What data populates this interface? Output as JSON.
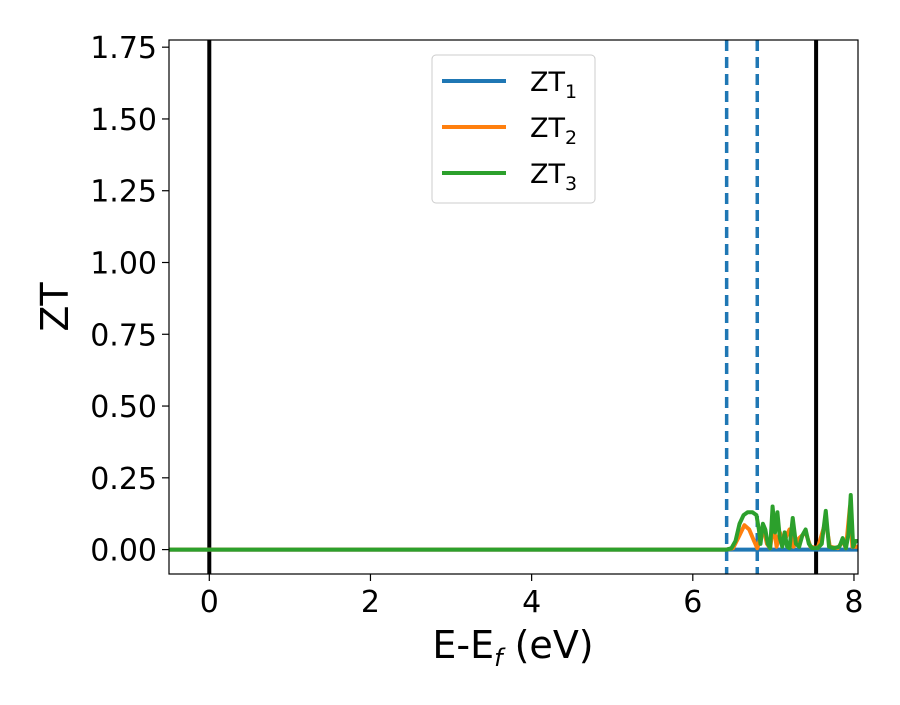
{
  "chart_data": {
    "type": "line",
    "title": "",
    "xlabel": "E-E",
    "xlabel_sub": "f",
    "xlabel_unit": " (eV)",
    "ylabel": "ZT",
    "xlim": [
      -0.5,
      8.05
    ],
    "ylim": [
      -0.085,
      1.775
    ],
    "xticks": [
      0,
      2,
      4,
      6,
      8
    ],
    "yticks": [
      0.0,
      0.25,
      0.5,
      0.75,
      1.0,
      1.25,
      1.5,
      1.75
    ],
    "ytick_labels": [
      "0.00",
      "0.25",
      "0.50",
      "0.75",
      "1.00",
      "1.25",
      "1.50",
      "1.75"
    ],
    "legend_position": "upper-center",
    "vlines": [
      {
        "x": 0.0,
        "style": "solid",
        "color": "#000000"
      },
      {
        "x": 7.53,
        "style": "solid",
        "color": "#000000"
      },
      {
        "x": 6.42,
        "style": "dashed",
        "color": "#1f77b4"
      },
      {
        "x": 6.8,
        "style": "dashed",
        "color": "#1f77b4"
      }
    ],
    "series": [
      {
        "name": "ZT",
        "sub": "1",
        "color": "#1f77b4",
        "points": [
          [
            -0.5,
            0
          ],
          [
            6.42,
            0
          ],
          [
            8.05,
            0
          ]
        ]
      },
      {
        "name": "ZT",
        "sub": "2",
        "color": "#ff7f0e",
        "points": [
          [
            -0.5,
            0
          ],
          [
            6.42,
            0
          ],
          [
            6.5,
            0.005
          ],
          [
            6.58,
            0.05
          ],
          [
            6.64,
            0.085
          ],
          [
            6.7,
            0.07
          ],
          [
            6.76,
            0.03
          ],
          [
            6.8,
            0.005
          ],
          [
            6.84,
            0.04
          ],
          [
            6.88,
            0.07
          ],
          [
            6.92,
            0.02
          ],
          [
            6.96,
            0.005
          ],
          [
            7.0,
            0.09
          ],
          [
            7.04,
            0.01
          ],
          [
            7.08,
            0.06
          ],
          [
            7.12,
            0.02
          ],
          [
            7.2,
            0.07
          ],
          [
            7.25,
            0.01
          ],
          [
            7.32,
            0.04
          ],
          [
            7.4,
            0.06
          ],
          [
            7.46,
            0.01
          ],
          [
            7.55,
            0.005
          ],
          [
            7.65,
            0.1
          ],
          [
            7.7,
            0.01
          ],
          [
            7.8,
            0.005
          ],
          [
            7.86,
            0.03
          ],
          [
            7.9,
            0.005
          ],
          [
            7.95,
            0.15
          ],
          [
            7.98,
            0.01
          ],
          [
            8.05,
            0.01
          ]
        ]
      },
      {
        "name": "ZT",
        "sub": "3",
        "color": "#2ca02c",
        "points": [
          [
            -0.5,
            0
          ],
          [
            6.42,
            0
          ],
          [
            6.48,
            0.005
          ],
          [
            6.53,
            0.03
          ],
          [
            6.58,
            0.09
          ],
          [
            6.63,
            0.12
          ],
          [
            6.68,
            0.13
          ],
          [
            6.74,
            0.13
          ],
          [
            6.79,
            0.12
          ],
          [
            6.82,
            0.07
          ],
          [
            6.84,
            0.02
          ],
          [
            6.87,
            0.09
          ],
          [
            6.9,
            0.07
          ],
          [
            6.93,
            0.02
          ],
          [
            6.96,
            0.005
          ],
          [
            6.99,
            0.15
          ],
          [
            7.02,
            0.06
          ],
          [
            7.05,
            0.13
          ],
          [
            7.08,
            0.04
          ],
          [
            7.11,
            0.01
          ],
          [
            7.14,
            0.06
          ],
          [
            7.17,
            0.01
          ],
          [
            7.2,
            0.005
          ],
          [
            7.24,
            0.11
          ],
          [
            7.28,
            0.02
          ],
          [
            7.32,
            0.01
          ],
          [
            7.36,
            0.05
          ],
          [
            7.4,
            0.07
          ],
          [
            7.44,
            0.02
          ],
          [
            7.48,
            0.005
          ],
          [
            7.55,
            0.005
          ],
          [
            7.6,
            0.02
          ],
          [
            7.65,
            0.135
          ],
          [
            7.69,
            0.01
          ],
          [
            7.75,
            0.005
          ],
          [
            7.82,
            0.01
          ],
          [
            7.86,
            0.04
          ],
          [
            7.9,
            0.005
          ],
          [
            7.93,
            0.05
          ],
          [
            7.96,
            0.19
          ],
          [
            7.99,
            0.01
          ],
          [
            8.02,
            0.03
          ],
          [
            8.05,
            0.03
          ]
        ]
      }
    ]
  }
}
